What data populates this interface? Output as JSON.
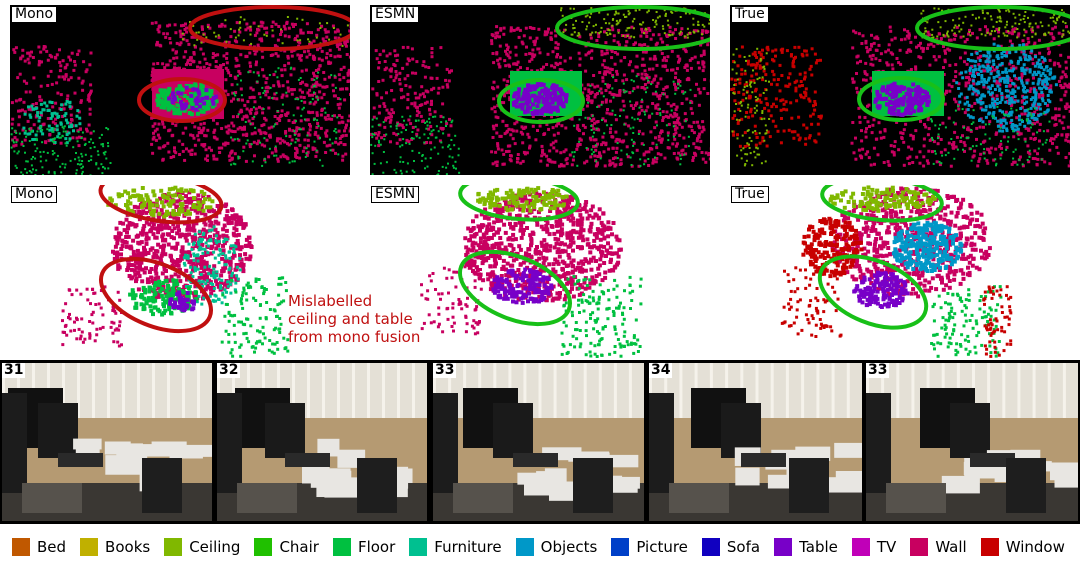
{
  "panel_labels": {
    "top_mono": "Mono",
    "top_esmn": "ESMN",
    "top_true": "True",
    "mid_mono": "Mono",
    "mid_esmn": "ESMN",
    "mid_true": "True"
  },
  "annotation": "Mislabelled\nceiling and table\nfrom mono fusion",
  "frames": [
    {
      "number": "31"
    },
    {
      "number": "32"
    },
    {
      "number": "33"
    },
    {
      "number": "34"
    },
    {
      "number": "33"
    }
  ],
  "legend": [
    {
      "label": "Bed",
      "color": "#c05800"
    },
    {
      "label": "Books",
      "color": "#c0b000"
    },
    {
      "label": "Ceiling",
      "color": "#80b800"
    },
    {
      "label": "Chair",
      "color": "#20c000"
    },
    {
      "label": "Floor",
      "color": "#00c040"
    },
    {
      "label": "Furniture",
      "color": "#00c090"
    },
    {
      "label": "Objects",
      "color": "#0098c8"
    },
    {
      "label": "Picture",
      "color": "#0040c8"
    },
    {
      "label": "Sofa",
      "color": "#1000c0"
    },
    {
      "label": "Table",
      "color": "#7800c8"
    },
    {
      "label": "TV",
      "color": "#c000b8"
    },
    {
      "label": "Wall",
      "color": "#c80060"
    },
    {
      "label": "Window",
      "color": "#c80000"
    }
  ],
  "colors": {
    "red_ellipse": "#c01010",
    "green_ellipse": "#18c018"
  }
}
